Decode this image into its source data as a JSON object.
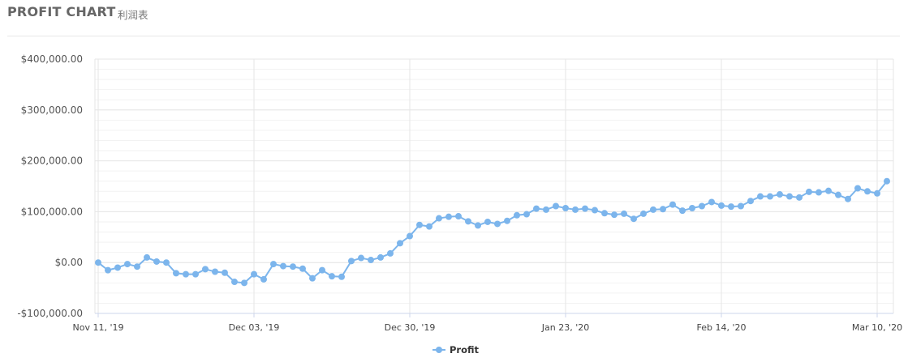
{
  "header": {
    "title": "PROFIT CHART",
    "subtitle": "利润表"
  },
  "colors": {
    "series": "#7cb5ec",
    "grid": "#e6e6e6",
    "minor_grid": "#f2f2f2",
    "axis": "#ccd6eb"
  },
  "chart_data": {
    "type": "line",
    "title": "",
    "xlabel": "",
    "ylabel": "",
    "ylim": [
      -100000,
      400000
    ],
    "y_ticks": [
      400000,
      300000,
      200000,
      100000,
      0,
      -100000
    ],
    "y_tick_labels": [
      "$400,000.00",
      "$300,000.00",
      "$200,000.00",
      "$100,000.00",
      "$0.00",
      "-$100,000.00"
    ],
    "x_ticks": [
      {
        "index": 0,
        "label": "Nov 11, '19"
      },
      {
        "index": 16,
        "label": "Dec 03, '19"
      },
      {
        "index": 32,
        "label": "Dec 30, '19"
      },
      {
        "index": 48,
        "label": "Jan 23, '20"
      },
      {
        "index": 64,
        "label": "Feb 14, '20"
      },
      {
        "index": 80,
        "label": "Mar 10, '20"
      }
    ],
    "grid": true,
    "legend_position": "bottom-center",
    "series": [
      {
        "name": "Profit",
        "marker": "circle",
        "values": [
          0,
          -15000,
          -10000,
          -3000,
          -8000,
          10000,
          2000,
          0,
          -21000,
          -23000,
          -23000,
          -13000,
          -18000,
          -20000,
          -38000,
          -40000,
          -23000,
          -33000,
          -3000,
          -7000,
          -8000,
          -12000,
          -31000,
          -15000,
          -27000,
          -28000,
          3000,
          9000,
          5000,
          10000,
          18000,
          38000,
          52000,
          74000,
          71000,
          87000,
          90000,
          91000,
          81000,
          73000,
          80000,
          76000,
          82000,
          93000,
          95000,
          106000,
          104000,
          111000,
          107000,
          104000,
          106000,
          103000,
          97000,
          94000,
          96000,
          86000,
          96000,
          104000,
          105000,
          114000,
          102000,
          107000,
          111000,
          119000,
          112000,
          110000,
          111000,
          121000,
          130000,
          130000,
          134000,
          130000,
          128000,
          139000,
          138000,
          141000,
          133000,
          125000,
          146000,
          140000,
          136000,
          160000
        ]
      }
    ]
  }
}
